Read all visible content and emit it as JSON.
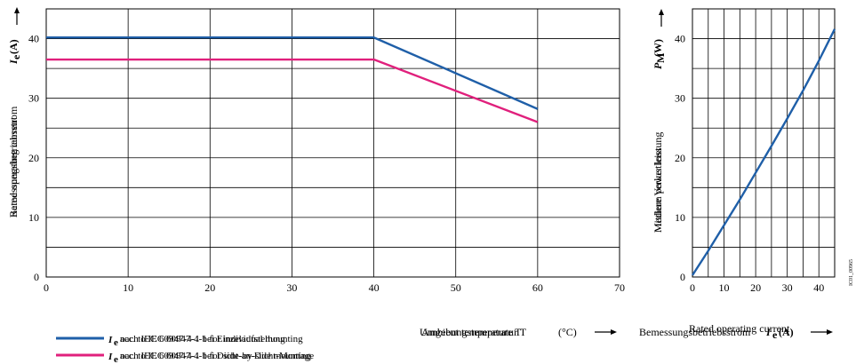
{
  "chart_data": [
    {
      "type": "line",
      "x_label_lines": [
        "Umgebungstemperatur T",
        "Ambient temperature T"
      ],
      "x_unit": "(°C)",
      "x_arrow": "⟶",
      "y_label_lines": [
        "Bemessungsbetriebsstrom",
        "Rated operating current"
      ],
      "y_symbol": "I",
      "y_symbol_sub": "e",
      "y_unit": "(A)",
      "y_arrow": "⟶",
      "xlim": [
        0,
        70
      ],
      "ylim": [
        0,
        45
      ],
      "x_ticks": [
        "0",
        "10",
        "20",
        "30",
        "40",
        "50",
        "60",
        "70"
      ],
      "y_ticks": [
        "0",
        "10",
        "20",
        "30",
        "40"
      ],
      "grid": true,
      "series": [
        {
          "name": "Ie nach IEC 60947-4-1 bei Einzelaufstellung / Ie acc. to IEC 60947-4-1 for individual mounting",
          "color": "#1f5fa8",
          "points": [
            [
              0,
              40.2
            ],
            [
              40,
              40.2
            ],
            [
              60,
              28.2
            ]
          ]
        },
        {
          "name": "Ie nach IEC 60947-4-1 bei Dicht-an-Dicht-Montage / Ie acc. to IEC 60947-4-1 for side-by-side mounting",
          "color": "#e0207c",
          "points": [
            [
              0,
              36.5
            ],
            [
              40,
              36.5
            ],
            [
              60,
              26
            ]
          ]
        }
      ]
    },
    {
      "type": "line",
      "x_label_lines": [
        "Bemessungsbetriebsstrom",
        "Rated operating current"
      ],
      "x_symbol": "I",
      "x_symbol_sub": "e",
      "x_unit": "(A)",
      "x_arrow": "⟶",
      "y_label_lines": [
        "Mittlere Verlustleistung",
        "Medium power loss"
      ],
      "y_symbol": "P",
      "y_symbol_sub": "M",
      "y_unit": "(W)",
      "y_arrow": "⟶",
      "xlim": [
        0,
        45
      ],
      "ylim": [
        0,
        45
      ],
      "x_ticks": [
        "0",
        "10",
        "20",
        "30",
        "40"
      ],
      "y_ticks": [
        "0",
        "10",
        "20",
        "30",
        "40"
      ],
      "grid": true,
      "series": [
        {
          "color": "#1f5fa8",
          "points": [
            [
              0,
              0.3
            ],
            [
              5,
              4.4
            ],
            [
              10,
              8.7
            ],
            [
              15,
              13
            ],
            [
              20,
              17.5
            ],
            [
              25,
              22
            ],
            [
              30,
              26.6
            ],
            [
              35,
              31.3
            ],
            [
              40,
              36.3
            ],
            [
              45,
              41.6
            ]
          ]
        }
      ]
    }
  ],
  "legend": [
    {
      "symbol": "I",
      "sub": "e",
      "text_de": "nach IEC 60947-4-1 bei Einzelaufstellung",
      "text_en": "acc. to IEC 60947-4-1 for individual mounting",
      "color": "#1f5fa8"
    },
    {
      "symbol": "I",
      "sub": "e",
      "text_de": "nach IEC 60947-4-1 bei Dicht-an-Dicht-Montage",
      "text_en": "acc. to IEC 60947-4-1 for side-by-side mounting",
      "color": "#e0207c"
    }
  ],
  "figure_id": "IC01_00965"
}
